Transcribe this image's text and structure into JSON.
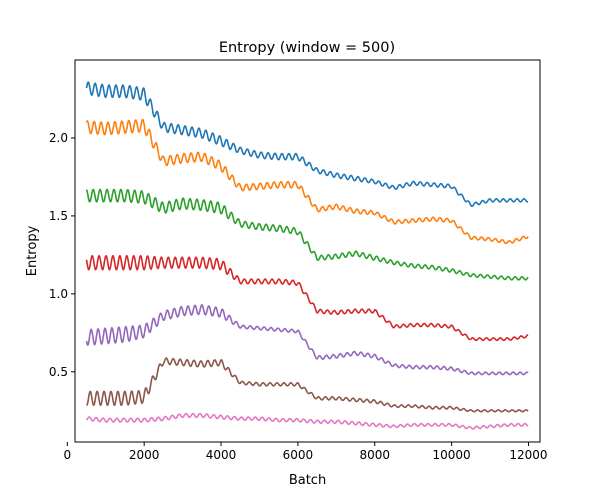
{
  "chart_data": {
    "type": "line",
    "title": "Entropy (window = 500)",
    "xlabel": "Batch",
    "ylabel": "Entropy",
    "xlim": [
      200,
      12300
    ],
    "ylim": [
      0.05,
      2.5
    ],
    "x_ticks": [
      0,
      2000,
      4000,
      6000,
      8000,
      10000,
      12000
    ],
    "y_ticks": [
      0.5,
      1.0,
      1.5,
      2.0
    ],
    "x_tick_labels": [
      "0",
      "2000",
      "4000",
      "6000",
      "8000",
      "10000",
      "12000"
    ],
    "y_tick_labels": [
      "0.5",
      "1.0",
      "1.5",
      "2.0"
    ],
    "grid": false,
    "series": [
      {
        "color": "#1f77b4",
        "x": [
          500,
          1000,
          1500,
          2000,
          2500,
          3000,
          3500,
          4000,
          4500,
          5000,
          5500,
          6000,
          6500,
          7000,
          7500,
          8000,
          8500,
          9000,
          9500,
          10000,
          10500,
          11000,
          11500,
          12000
        ],
        "y": [
          2.32,
          2.3,
          2.3,
          2.28,
          2.07,
          2.05,
          2.03,
          1.98,
          1.92,
          1.89,
          1.88,
          1.88,
          1.79,
          1.76,
          1.74,
          1.72,
          1.68,
          1.71,
          1.7,
          1.69,
          1.57,
          1.6,
          1.6,
          1.6
        ],
        "amp": [
          0.04,
          0.04,
          0.04,
          0.04,
          0.03,
          0.03,
          0.03,
          0.03,
          0.02,
          0.02,
          0.02,
          0.02,
          0.015,
          0.015,
          0.015,
          0.012,
          0.012,
          0.012,
          0.012,
          0.012,
          0.01,
          0.01,
          0.01,
          0.01
        ]
      },
      {
        "color": "#ff7f0e",
        "x": [
          500,
          1000,
          1500,
          2000,
          2500,
          3000,
          3500,
          4000,
          4500,
          5000,
          5500,
          6000,
          6500,
          7000,
          7500,
          8000,
          8500,
          9000,
          9500,
          10000,
          10500,
          11000,
          11500,
          12000
        ],
        "y": [
          2.07,
          2.06,
          2.07,
          2.08,
          1.85,
          1.87,
          1.88,
          1.82,
          1.68,
          1.69,
          1.7,
          1.7,
          1.54,
          1.56,
          1.53,
          1.52,
          1.46,
          1.47,
          1.48,
          1.47,
          1.36,
          1.35,
          1.33,
          1.37
        ],
        "amp": [
          0.04,
          0.04,
          0.04,
          0.04,
          0.03,
          0.03,
          0.03,
          0.03,
          0.02,
          0.02,
          0.02,
          0.02,
          0.015,
          0.015,
          0.015,
          0.012,
          0.012,
          0.012,
          0.012,
          0.012,
          0.01,
          0.01,
          0.01,
          0.01
        ]
      },
      {
        "color": "#2ca02c",
        "x": [
          500,
          1000,
          1500,
          2000,
          2500,
          3000,
          3500,
          4000,
          4500,
          5000,
          5500,
          6000,
          6500,
          7000,
          7500,
          8000,
          8500,
          9000,
          9500,
          10000,
          10500,
          11000,
          11500,
          12000
        ],
        "y": [
          1.63,
          1.63,
          1.63,
          1.62,
          1.55,
          1.58,
          1.57,
          1.55,
          1.45,
          1.43,
          1.42,
          1.4,
          1.23,
          1.24,
          1.26,
          1.23,
          1.2,
          1.18,
          1.17,
          1.15,
          1.12,
          1.11,
          1.1,
          1.1
        ],
        "amp": [
          0.04,
          0.04,
          0.04,
          0.04,
          0.035,
          0.035,
          0.035,
          0.035,
          0.02,
          0.02,
          0.02,
          0.02,
          0.015,
          0.015,
          0.015,
          0.015,
          0.012,
          0.012,
          0.012,
          0.012,
          0.01,
          0.01,
          0.01,
          0.01
        ]
      },
      {
        "color": "#d62728",
        "x": [
          500,
          1000,
          1500,
          2000,
          2500,
          3000,
          3500,
          4000,
          4500,
          5000,
          5500,
          6000,
          6500,
          7000,
          7500,
          8000,
          8500,
          9000,
          9500,
          10000,
          10500,
          11000,
          11500,
          12000
        ],
        "y": [
          1.2,
          1.2,
          1.2,
          1.2,
          1.2,
          1.2,
          1.2,
          1.19,
          1.08,
          1.08,
          1.08,
          1.07,
          0.89,
          0.88,
          0.89,
          0.89,
          0.79,
          0.8,
          0.8,
          0.79,
          0.71,
          0.71,
          0.71,
          0.73
        ],
        "amp": [
          0.045,
          0.045,
          0.045,
          0.045,
          0.035,
          0.035,
          0.035,
          0.035,
          0.015,
          0.015,
          0.015,
          0.015,
          0.012,
          0.012,
          0.012,
          0.012,
          0.01,
          0.01,
          0.01,
          0.01,
          0.008,
          0.008,
          0.008,
          0.008
        ]
      },
      {
        "color": "#9467bd",
        "x": [
          500,
          1000,
          1500,
          2000,
          2500,
          3000,
          3500,
          4000,
          4500,
          5000,
          5500,
          6000,
          6500,
          7000,
          7500,
          8000,
          8500,
          9000,
          9500,
          10000,
          10500,
          11000,
          11500,
          12000
        ],
        "y": [
          0.72,
          0.73,
          0.74,
          0.76,
          0.86,
          0.89,
          0.9,
          0.88,
          0.79,
          0.78,
          0.77,
          0.76,
          0.59,
          0.6,
          0.62,
          0.6,
          0.54,
          0.53,
          0.53,
          0.52,
          0.49,
          0.49,
          0.49,
          0.49
        ],
        "amp": [
          0.05,
          0.05,
          0.05,
          0.04,
          0.03,
          0.03,
          0.03,
          0.03,
          0.01,
          0.01,
          0.01,
          0.01,
          0.012,
          0.012,
          0.012,
          0.012,
          0.01,
          0.01,
          0.01,
          0.01,
          0.008,
          0.008,
          0.008,
          0.008
        ]
      },
      {
        "color": "#8c564b",
        "x": [
          500,
          1000,
          1500,
          2000,
          2500,
          3000,
          3500,
          4000,
          4500,
          5000,
          5500,
          6000,
          6500,
          7000,
          7500,
          8000,
          8500,
          9000,
          9500,
          10000,
          10500,
          11000,
          11500,
          12000
        ],
        "y": [
          0.33,
          0.33,
          0.33,
          0.34,
          0.57,
          0.56,
          0.55,
          0.56,
          0.43,
          0.42,
          0.42,
          0.42,
          0.33,
          0.33,
          0.32,
          0.31,
          0.28,
          0.28,
          0.27,
          0.27,
          0.25,
          0.25,
          0.25,
          0.25
        ],
        "amp": [
          0.045,
          0.045,
          0.045,
          0.04,
          0.02,
          0.02,
          0.02,
          0.02,
          0.01,
          0.01,
          0.01,
          0.01,
          0.01,
          0.01,
          0.01,
          0.01,
          0.008,
          0.008,
          0.008,
          0.008,
          0.006,
          0.006,
          0.006,
          0.006
        ]
      },
      {
        "color": "#e377c2",
        "x": [
          500,
          1000,
          1500,
          2000,
          2500,
          3000,
          3500,
          4000,
          4500,
          5000,
          5500,
          6000,
          6500,
          7000,
          7500,
          8000,
          8500,
          9000,
          9500,
          10000,
          10500,
          11000,
          11500,
          12000
        ],
        "y": [
          0.2,
          0.19,
          0.19,
          0.19,
          0.2,
          0.22,
          0.22,
          0.21,
          0.2,
          0.2,
          0.19,
          0.19,
          0.18,
          0.18,
          0.17,
          0.16,
          0.15,
          0.16,
          0.16,
          0.16,
          0.14,
          0.15,
          0.16,
          0.16
        ],
        "amp": [
          0.012,
          0.012,
          0.012,
          0.012,
          0.012,
          0.012,
          0.012,
          0.012,
          0.01,
          0.01,
          0.01,
          0.01,
          0.01,
          0.01,
          0.01,
          0.01,
          0.008,
          0.008,
          0.008,
          0.008,
          0.008,
          0.008,
          0.008,
          0.008
        ]
      }
    ]
  }
}
